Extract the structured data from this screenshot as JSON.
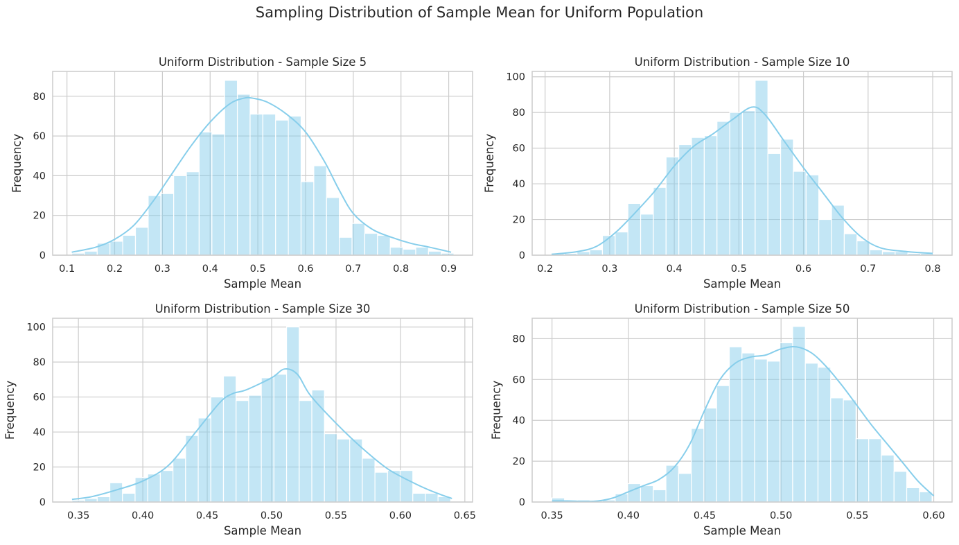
{
  "figure": {
    "title": "Sampling Distribution of Sample Mean for Uniform Population"
  },
  "colors": {
    "bar_fill": "#87ceeb",
    "bar_opacity": 0.5,
    "kde_line": "#87ceeb",
    "grid": "#cccccc",
    "spine": "#cccccc",
    "text": "#262626",
    "background": "#ffffff"
  },
  "chart_data": [
    {
      "type": "bar",
      "title": "Uniform Distribution - Sample Size 5",
      "xlabel": "Sample Mean",
      "ylabel": "Frequency",
      "xlim": [
        0.07,
        0.95
      ],
      "ylim": [
        0,
        92.5
      ],
      "xticks": [
        0.1,
        0.2,
        0.3,
        0.4,
        0.5,
        0.6,
        0.7,
        0.8,
        0.9
      ],
      "xtick_labels": [
        "0.1",
        "0.2",
        "0.3",
        "0.4",
        "0.5",
        "0.6",
        "0.7",
        "0.8",
        "0.9"
      ],
      "yticks": [
        0,
        20,
        40,
        60,
        80
      ],
      "grid": true,
      "bin_start": 0.11,
      "bin_width": 0.0267,
      "counts": [
        1,
        2,
        6,
        7,
        10,
        14,
        30,
        31,
        40,
        42,
        62,
        61,
        88,
        81,
        71,
        71,
        68,
        70,
        37,
        45,
        29,
        9,
        16,
        11,
        10,
        4,
        3,
        4,
        2,
        1
      ],
      "kde": {
        "x": [
          0.11,
          0.16,
          0.2,
          0.24,
          0.28,
          0.32,
          0.36,
          0.4,
          0.44,
          0.47,
          0.49,
          0.52,
          0.56,
          0.6,
          0.64,
          0.67,
          0.7,
          0.74,
          0.78,
          0.82,
          0.86,
          0.905
        ],
        "y": [
          1.5,
          4,
          8,
          15,
          27,
          41,
          55,
          67,
          76,
          79,
          79,
          77,
          71,
          62,
          47,
          33,
          21,
          13,
          9,
          6,
          4,
          1.5
        ]
      }
    },
    {
      "type": "bar",
      "title": "Uniform Distribution - Sample Size 10",
      "xlabel": "Sample Mean",
      "ylabel": "Frequency",
      "xlim": [
        0.18,
        0.83
      ],
      "ylim": [
        0,
        103
      ],
      "xticks": [
        0.2,
        0.3,
        0.4,
        0.5,
        0.6,
        0.7,
        0.8
      ],
      "xtick_labels": [
        "0.2",
        "0.3",
        "0.4",
        "0.5",
        "0.6",
        "0.7",
        "0.8"
      ],
      "yticks": [
        0,
        20,
        40,
        60,
        80,
        100
      ],
      "grid": true,
      "bin_start": 0.21,
      "bin_width": 0.0197,
      "counts": [
        1,
        1,
        2,
        3,
        11,
        13,
        29,
        23,
        38,
        55,
        62,
        66,
        67,
        75,
        80,
        81,
        98,
        57,
        65,
        47,
        45,
        20,
        28,
        12,
        8,
        3,
        2,
        2,
        1,
        1
      ],
      "kde": {
        "x": [
          0.21,
          0.25,
          0.28,
          0.31,
          0.34,
          0.37,
          0.4,
          0.43,
          0.46,
          0.49,
          0.52,
          0.54,
          0.57,
          0.6,
          0.63,
          0.66,
          0.69,
          0.72,
          0.76,
          0.8
        ],
        "y": [
          0.5,
          2,
          5,
          13,
          24,
          36,
          50,
          61,
          68,
          76,
          83,
          79,
          64,
          49,
          35,
          21,
          10,
          4,
          2,
          1
        ]
      }
    },
    {
      "type": "bar",
      "title": "Uniform Distribution - Sample Size 30",
      "xlabel": "Sample Mean",
      "ylabel": "Frequency",
      "xlim": [
        0.33,
        0.656
      ],
      "ylim": [
        0,
        105
      ],
      "xticks": [
        0.35,
        0.4,
        0.45,
        0.5,
        0.55,
        0.6,
        0.65
      ],
      "xtick_labels": [
        "0.35",
        "0.40",
        "0.45",
        "0.50",
        "0.55",
        "0.60",
        "0.65"
      ],
      "yticks": [
        0,
        20,
        40,
        60,
        80,
        100
      ],
      "grid": true,
      "bin_start": 0.345,
      "bin_width": 0.0098,
      "counts": [
        1,
        2,
        3,
        11,
        5,
        14,
        16,
        18,
        25,
        38,
        48,
        60,
        72,
        58,
        61,
        71,
        73,
        100,
        58,
        64,
        39,
        36,
        36,
        25,
        17,
        18,
        18,
        5,
        5,
        3
      ],
      "kde": {
        "x": [
          0.345,
          0.36,
          0.38,
          0.4,
          0.42,
          0.44,
          0.46,
          0.47,
          0.48,
          0.5,
          0.51,
          0.52,
          0.53,
          0.55,
          0.57,
          0.59,
          0.61,
          0.625,
          0.64
        ],
        "y": [
          1.5,
          3,
          7,
          12,
          21,
          39,
          57,
          62,
          64,
          71,
          76,
          73,
          61,
          45,
          31,
          19,
          11,
          6,
          2
        ]
      }
    },
    {
      "type": "bar",
      "title": "Uniform Distribution - Sample Size 50",
      "xlabel": "Sample Mean",
      "ylabel": "Frequency",
      "xlim": [
        0.337,
        0.612
      ],
      "ylim": [
        0,
        90
      ],
      "xticks": [
        0.35,
        0.4,
        0.45,
        0.5,
        0.55,
        0.6
      ],
      "xtick_labels": [
        "0.35",
        "0.40",
        "0.45",
        "0.50",
        "0.55",
        "0.60"
      ],
      "yticks": [
        0,
        20,
        40,
        60,
        80
      ],
      "grid": true,
      "bin_start": 0.3499,
      "bin_width": 0.0083,
      "counts": [
        2,
        1,
        1,
        0,
        1,
        4,
        9,
        8,
        6,
        18,
        14,
        36,
        46,
        57,
        76,
        73,
        70,
        69,
        78,
        86,
        68,
        66,
        51,
        50,
        31,
        31,
        23,
        15,
        7,
        5
      ],
      "kde": {
        "x": [
          0.35,
          0.36,
          0.37,
          0.38,
          0.39,
          0.4,
          0.41,
          0.42,
          0.43,
          0.44,
          0.45,
          0.46,
          0.47,
          0.48,
          0.49,
          0.5,
          0.51,
          0.52,
          0.53,
          0.54,
          0.55,
          0.56,
          0.57,
          0.58,
          0.59,
          0.6
        ],
        "y": [
          0.5,
          0.5,
          0.3,
          0.5,
          2,
          5,
          8,
          11,
          17,
          28,
          45,
          60,
          68,
          71,
          72,
          75,
          76,
          73,
          66,
          57,
          47,
          37,
          28,
          19,
          10,
          3
        ]
      }
    }
  ]
}
